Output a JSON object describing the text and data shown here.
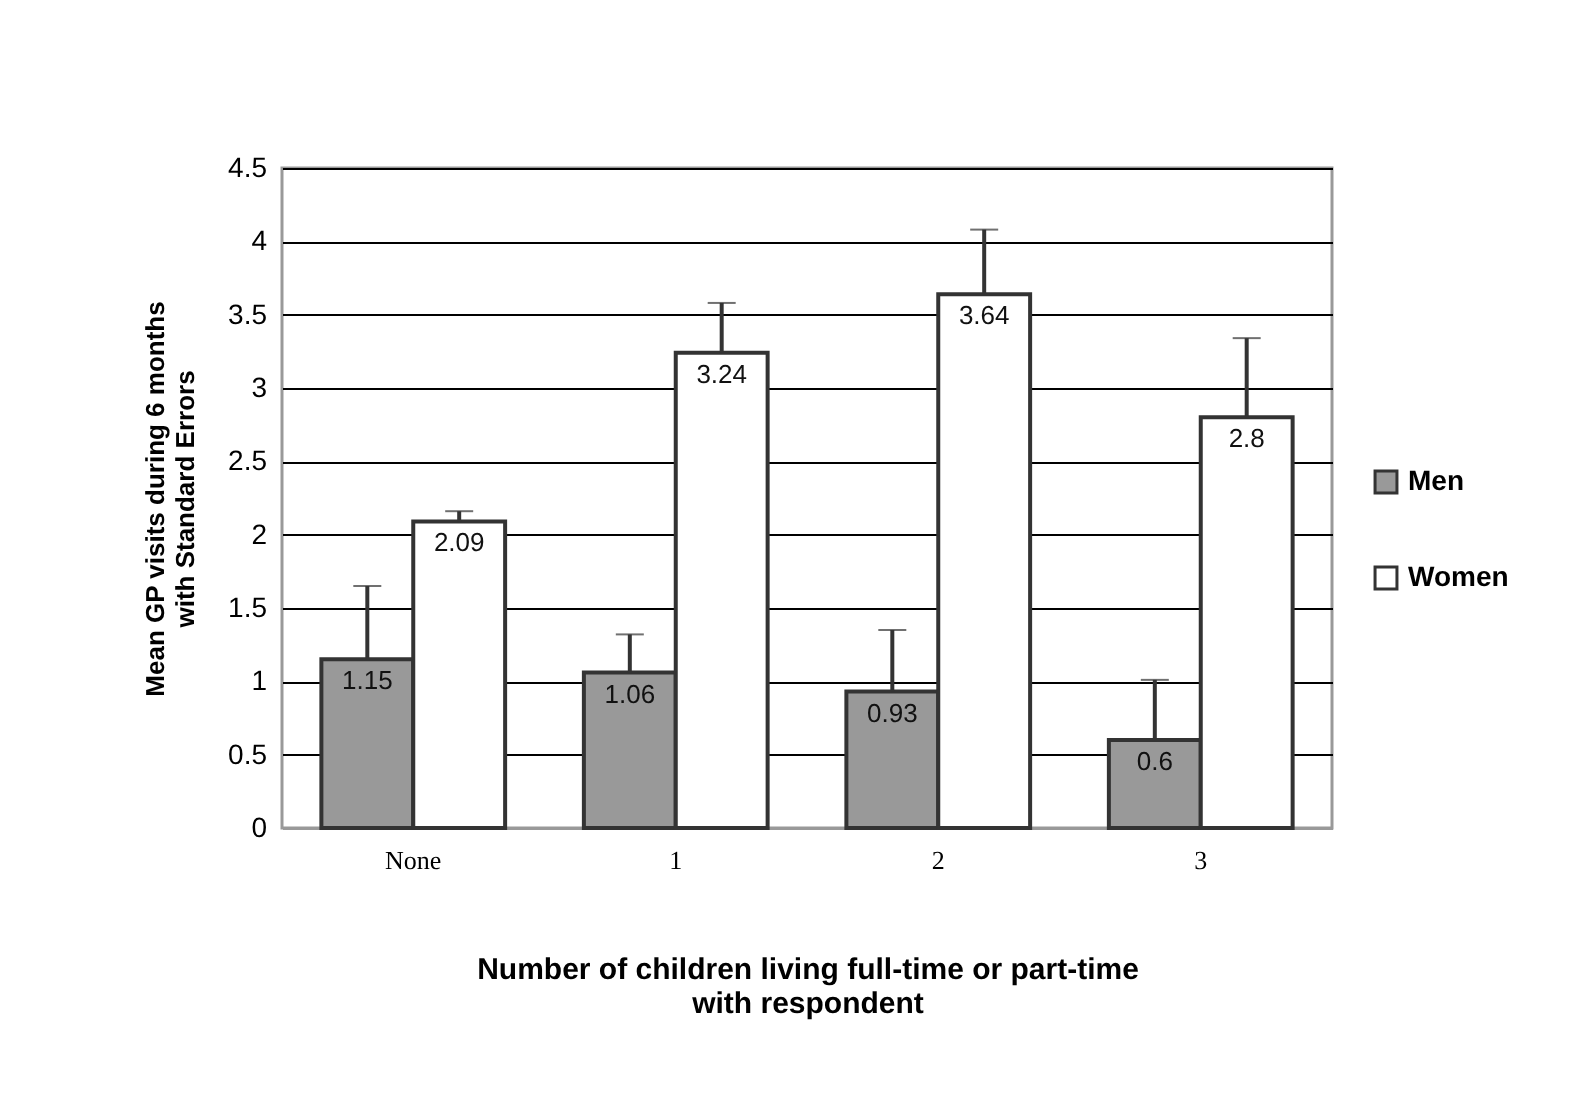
{
  "chart_data": {
    "type": "bar",
    "xlabel": "Number of children living full-time or part-time\nwith respondent",
    "ylabel": "Mean GP visits during 6 months\nwith Standard Errors",
    "categories": [
      "None",
      "1",
      "2",
      "3"
    ],
    "series": [
      {
        "name": "Men",
        "color": "#999999",
        "values": [
          1.15,
          1.06,
          0.93,
          0.6
        ],
        "errors": [
          [
            1.15,
            1.65
          ],
          [
            1.06,
            1.32
          ],
          [
            0.93,
            1.35
          ],
          [
            0.6,
            1.01
          ]
        ]
      },
      {
        "name": "Women",
        "color": "#ffffff",
        "values": [
          2.09,
          3.24,
          3.64,
          2.8
        ],
        "errors": [
          [
            2.09,
            2.16
          ],
          [
            3.24,
            3.58
          ],
          [
            3.64,
            4.08
          ],
          [
            2.8,
            3.34
          ]
        ]
      }
    ],
    "ylim": [
      0,
      4.5
    ],
    "yticks": [
      0,
      0.5,
      1,
      1.5,
      2,
      2.5,
      3,
      3.5,
      4,
      4.5
    ],
    "grid": "y",
    "legend": "right",
    "data_labels": true
  }
}
